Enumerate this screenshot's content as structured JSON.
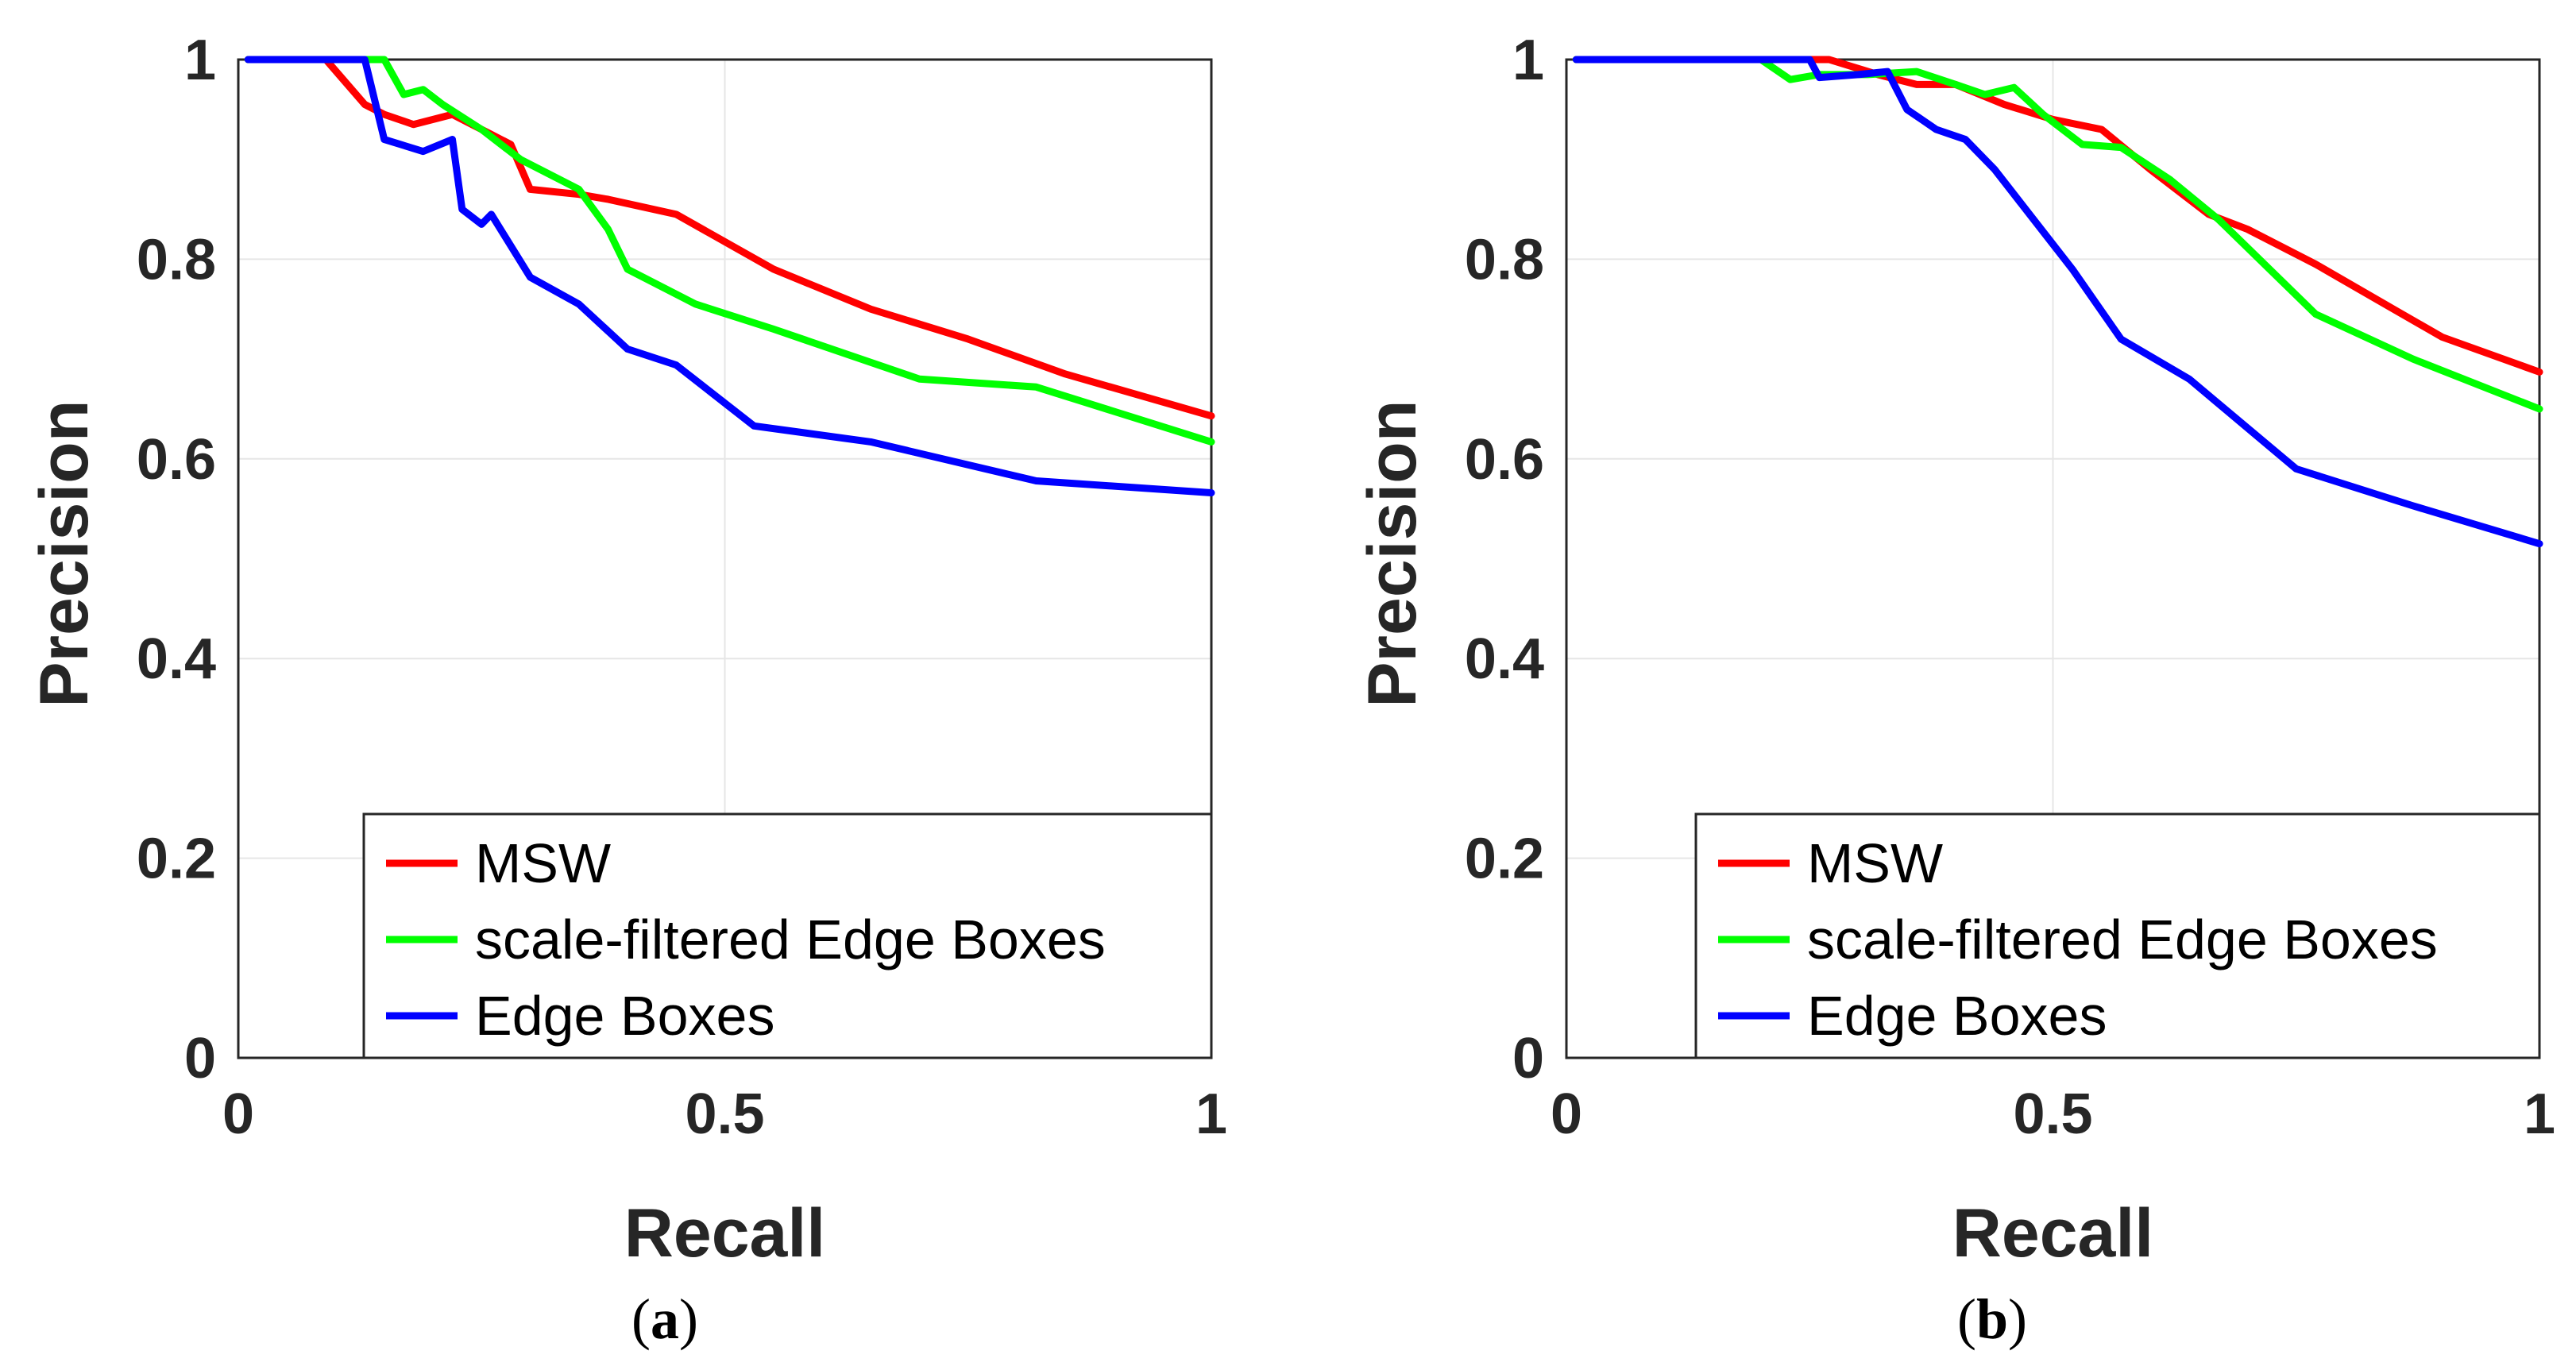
{
  "chart_data": [
    {
      "type": "line",
      "panel": "(a)",
      "caption_label": "a",
      "xlabel": "Recall",
      "ylabel": "Precision",
      "xlim": [
        0,
        1
      ],
      "ylim": [
        0,
        1
      ],
      "xticks": [
        0,
        0.5,
        1
      ],
      "xtick_labels": [
        "0",
        "0.5",
        "1"
      ],
      "yticks": [
        0,
        0.2,
        0.4,
        0.6,
        0.8,
        1
      ],
      "ytick_labels": [
        "0",
        "0.2",
        "0.4",
        "0.6",
        "0.8",
        "1"
      ],
      "grid": true,
      "legend_position": "bottom-right",
      "series": [
        {
          "name": "MSW",
          "color": "#ff0000",
          "x": [
            0.01,
            0.09,
            0.13,
            0.15,
            0.18,
            0.22,
            0.26,
            0.28,
            0.3,
            0.35,
            0.38,
            0.45,
            0.55,
            0.65,
            0.75,
            0.85,
            1.0
          ],
          "y": [
            1.0,
            1.0,
            0.955,
            0.945,
            0.935,
            0.945,
            0.925,
            0.915,
            0.87,
            0.865,
            0.86,
            0.845,
            0.79,
            0.75,
            0.72,
            0.685,
            0.643
          ]
        },
        {
          "name": "scale-filtered Edge Boxes",
          "color": "#00ff00",
          "x": [
            0.01,
            0.13,
            0.15,
            0.17,
            0.19,
            0.21,
            0.25,
            0.29,
            0.35,
            0.38,
            0.4,
            0.47,
            0.55,
            0.7,
            0.82,
            1.0
          ],
          "y": [
            1.0,
            1.0,
            1.0,
            0.965,
            0.97,
            0.955,
            0.93,
            0.9,
            0.87,
            0.83,
            0.79,
            0.755,
            0.73,
            0.68,
            0.672,
            0.617
          ]
        },
        {
          "name": "Edge Boxes",
          "color": "#0000ff",
          "x": [
            0.01,
            0.13,
            0.15,
            0.19,
            0.22,
            0.23,
            0.25,
            0.26,
            0.3,
            0.35,
            0.4,
            0.45,
            0.53,
            0.65,
            0.82,
            1.0
          ],
          "y": [
            1.0,
            1.0,
            0.92,
            0.908,
            0.92,
            0.85,
            0.835,
            0.845,
            0.782,
            0.755,
            0.71,
            0.694,
            0.633,
            0.617,
            0.578,
            0.566
          ]
        }
      ]
    },
    {
      "type": "line",
      "panel": "(b)",
      "caption_label": "b",
      "xlabel": "Recall",
      "ylabel": "Precision",
      "xlim": [
        0,
        1
      ],
      "ylim": [
        0,
        1
      ],
      "xticks": [
        0,
        0.5,
        1
      ],
      "xtick_labels": [
        "0",
        "0.5",
        "1"
      ],
      "yticks": [
        0,
        0.2,
        0.4,
        0.6,
        0.8,
        1
      ],
      "ytick_labels": [
        "0",
        "0.2",
        "0.4",
        "0.6",
        "0.8",
        "1"
      ],
      "grid": true,
      "legend_position": "bottom-right",
      "series": [
        {
          "name": "MSW",
          "color": "#ff0000",
          "x": [
            0.01,
            0.27,
            0.32,
            0.36,
            0.4,
            0.45,
            0.5,
            0.55,
            0.6,
            0.66,
            0.7,
            0.77,
            0.85,
            0.9,
            1.0
          ],
          "y": [
            1.0,
            1.0,
            0.985,
            0.975,
            0.975,
            0.955,
            0.94,
            0.93,
            0.89,
            0.845,
            0.83,
            0.795,
            0.75,
            0.722,
            0.687
          ]
        },
        {
          "name": "scale-filtered Edge Boxes",
          "color": "#00ff00",
          "x": [
            0.01,
            0.2,
            0.23,
            0.26,
            0.31,
            0.36,
            0.4,
            0.43,
            0.46,
            0.49,
            0.53,
            0.57,
            0.62,
            0.67,
            0.77,
            0.87,
            1.0
          ],
          "y": [
            1.0,
            1.0,
            0.98,
            0.985,
            0.985,
            0.988,
            0.975,
            0.965,
            0.972,
            0.945,
            0.915,
            0.912,
            0.88,
            0.84,
            0.745,
            0.7,
            0.65
          ]
        },
        {
          "name": "Edge Boxes",
          "color": "#0000ff",
          "x": [
            0.01,
            0.25,
            0.26,
            0.3,
            0.33,
            0.35,
            0.38,
            0.41,
            0.44,
            0.48,
            0.52,
            0.57,
            0.64,
            0.75,
            0.87,
            1.0
          ],
          "y": [
            1.0,
            1.0,
            0.982,
            0.985,
            0.988,
            0.95,
            0.93,
            0.92,
            0.89,
            0.84,
            0.79,
            0.72,
            0.68,
            0.59,
            0.553,
            0.515
          ]
        }
      ]
    }
  ]
}
